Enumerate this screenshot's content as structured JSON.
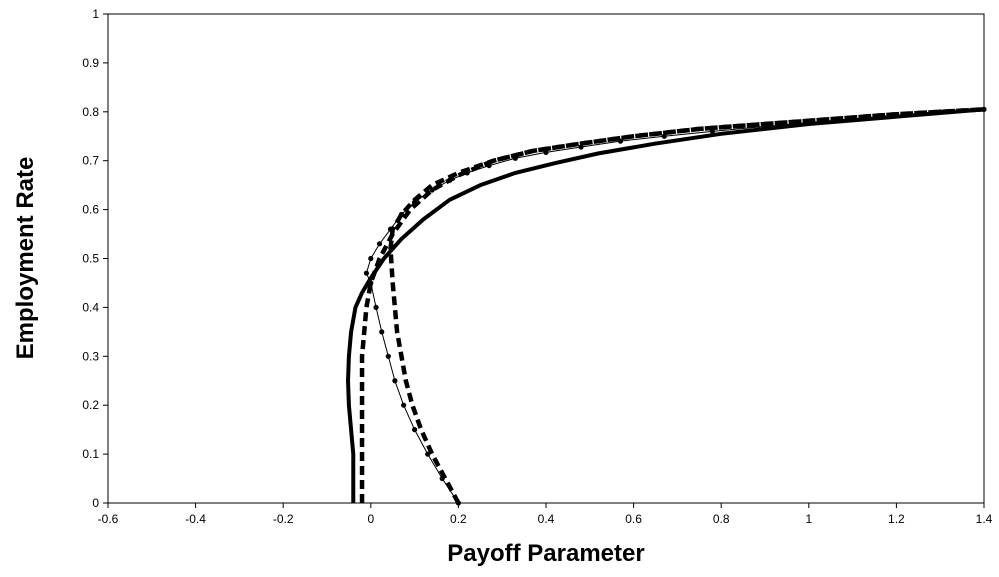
{
  "chart_data": {
    "type": "line",
    "title": "",
    "xlabel": "Payoff Parameter",
    "ylabel": "Employment Rate",
    "xlim": [
      -0.6,
      1.4
    ],
    "ylim": [
      0,
      1
    ],
    "x_ticks": [
      "-0.6",
      "-0.4",
      "-0.2",
      "0",
      "0.2",
      "0.4",
      "0.6",
      "0.8",
      "1",
      "1.2",
      "1.4"
    ],
    "y_ticks": [
      "0",
      "0.1",
      "0.2",
      "0.3",
      "0.4",
      "0.5",
      "0.6",
      "0.7",
      "0.8",
      "0.9",
      "1"
    ],
    "grid": false,
    "legend": "none",
    "series": [
      {
        "style": "thick-solid",
        "color": "#000000",
        "x": [
          -0.04,
          -0.04,
          -0.04,
          -0.045,
          -0.05,
          -0.052,
          -0.05,
          -0.045,
          -0.035,
          -0.02,
          0.0,
          0.03,
          0.07,
          0.12,
          0.18,
          0.25,
          0.33,
          0.42,
          0.52,
          0.65,
          0.8,
          1.0,
          1.2,
          1.4
        ],
        "y": [
          0.0,
          0.05,
          0.1,
          0.15,
          0.2,
          0.25,
          0.3,
          0.35,
          0.4,
          0.43,
          0.46,
          0.5,
          0.54,
          0.58,
          0.62,
          0.65,
          0.675,
          0.695,
          0.715,
          0.735,
          0.755,
          0.775,
          0.79,
          0.805
        ]
      },
      {
        "style": "thick-dashed",
        "color": "#000000",
        "x": [
          -0.02,
          -0.02,
          -0.02,
          -0.02,
          -0.02,
          -0.02,
          -0.02,
          -0.015,
          -0.01,
          0.0,
          0.02,
          0.05,
          0.09,
          0.14,
          0.2,
          0.28,
          0.37,
          0.48,
          0.6,
          0.75,
          0.9,
          1.05,
          1.2,
          1.4
        ],
        "y": [
          0.0,
          0.05,
          0.1,
          0.15,
          0.2,
          0.25,
          0.3,
          0.35,
          0.4,
          0.45,
          0.5,
          0.55,
          0.6,
          0.64,
          0.67,
          0.7,
          0.72,
          0.735,
          0.75,
          0.765,
          0.775,
          0.785,
          0.795,
          0.805
        ]
      },
      {
        "style": "thick-dashed",
        "color": "#000000",
        "x": [
          0.2,
          0.17,
          0.14,
          0.115,
          0.095,
          0.08,
          0.07,
          0.06,
          0.055,
          0.05,
          0.045,
          0.05,
          0.07,
          0.1,
          0.14,
          0.2,
          0.28,
          0.37,
          0.48,
          0.6,
          0.75,
          0.9,
          1.05,
          1.2,
          1.4
        ],
        "y": [
          0.0,
          0.05,
          0.1,
          0.15,
          0.2,
          0.25,
          0.3,
          0.35,
          0.4,
          0.45,
          0.52,
          0.56,
          0.59,
          0.62,
          0.65,
          0.675,
          0.7,
          0.72,
          0.735,
          0.75,
          0.765,
          0.775,
          0.785,
          0.795,
          0.805
        ]
      },
      {
        "style": "thin-solid-markers",
        "color": "#000000",
        "x": [
          0.2,
          0.163,
          0.13,
          0.1,
          0.075,
          0.055,
          0.04,
          0.025,
          0.012,
          0.0,
          -0.01,
          0.0,
          0.02,
          0.045,
          0.07,
          0.1,
          0.14,
          0.18,
          0.22,
          0.27,
          0.33,
          0.4,
          0.48,
          0.57,
          0.67,
          0.78,
          0.9,
          1.03,
          1.17,
          1.3,
          1.4
        ],
        "y": [
          0.0,
          0.05,
          0.1,
          0.15,
          0.2,
          0.25,
          0.3,
          0.35,
          0.4,
          0.45,
          0.47,
          0.5,
          0.53,
          0.56,
          0.59,
          0.615,
          0.64,
          0.66,
          0.675,
          0.69,
          0.705,
          0.717,
          0.728,
          0.74,
          0.75,
          0.76,
          0.77,
          0.78,
          0.79,
          0.8,
          0.805
        ]
      }
    ]
  }
}
